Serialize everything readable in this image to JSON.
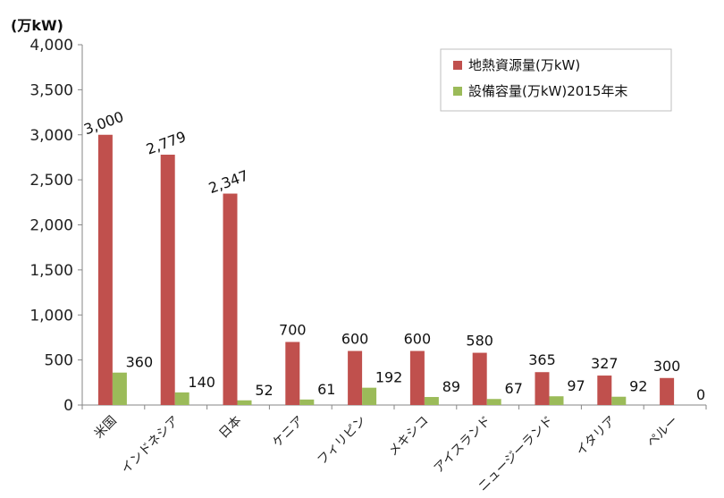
{
  "chart_data": {
    "type": "bar",
    "ylabel": "(万kW)",
    "ylim": [
      0,
      4000
    ],
    "yticks": [
      0,
      500,
      1000,
      1500,
      2000,
      2500,
      3000,
      3500,
      4000
    ],
    "ytick_labels": [
      "0",
      "500",
      "1,000",
      "1,500",
      "2,000",
      "2,500",
      "3,000",
      "3,500",
      "4,000"
    ],
    "categories": [
      "米国",
      "インドネシア",
      "日本",
      "ケニア",
      "フィリピン",
      "メキシコ",
      "アイスランド",
      "ニュージーランド",
      "イタリア",
      "ペルー"
    ],
    "series": [
      {
        "name": "地熱資源量(万kW)",
        "color": "#c0504d",
        "values": [
          3000,
          2779,
          2347,
          700,
          600,
          600,
          580,
          365,
          327,
          300
        ],
        "labels": [
          "3,000",
          "2,779",
          "2,347",
          "700",
          "600",
          "600",
          "580",
          "365",
          "327",
          "300"
        ]
      },
      {
        "name": "設備容量(万kW)2015年末",
        "color": "#9bbb59",
        "values": [
          360,
          140,
          52,
          61,
          192,
          89,
          67,
          97,
          92,
          0
        ],
        "labels": [
          "360",
          "140",
          "52",
          "61",
          "192",
          "89",
          "67",
          "97",
          "92",
          "0"
        ]
      }
    ],
    "grid": false,
    "legend_position": "top-right"
  }
}
